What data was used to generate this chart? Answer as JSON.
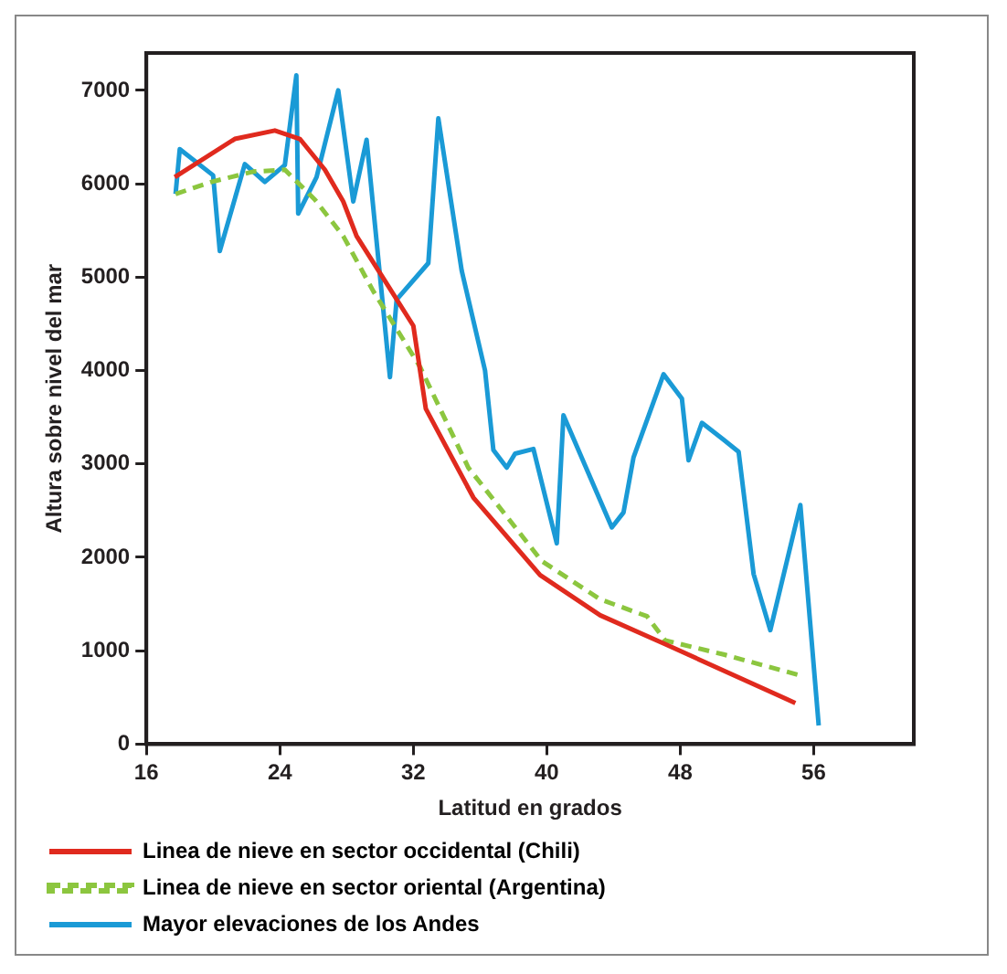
{
  "chart_data": {
    "type": "line",
    "xlabel": "Latitud en grados",
    "ylabel": "Altura sobre nivel del mar",
    "xlim": [
      16,
      62
    ],
    "xticks": [
      16,
      24,
      32,
      40,
      48,
      56
    ],
    "ylim": [
      0,
      7400
    ],
    "yticks": [
      0,
      1000,
      2000,
      3000,
      4000,
      5000,
      6000,
      7000
    ],
    "grid": false,
    "legend": "bottom",
    "marker": "none",
    "series": [
      {
        "name": "Linea de nieve en sector occidental (Chili)",
        "color": "#e02a1e",
        "line_style": "solid",
        "x": [
          17.7,
          21.3,
          23.7,
          25.2,
          26.7,
          27.8,
          28.6,
          30.3,
          32.0,
          32.75,
          35.6,
          39.6,
          43.2,
          47.1,
          54.9
        ],
        "values": [
          6070,
          6480,
          6570,
          6480,
          6150,
          5810,
          5440,
          4960,
          4480,
          3590,
          2640,
          1810,
          1380,
          1070,
          440
        ]
      },
      {
        "name": "Linea de nieve en sector oriental (Argentina)",
        "color": "#8cc63f",
        "line_style": "dashed",
        "x": [
          17.75,
          19.9,
          22.4,
          24.3,
          26.1,
          27.8,
          29.6,
          31.4,
          32.4,
          35.3,
          39.7,
          43.2,
          46.0,
          47.1,
          50.6,
          55.1
        ],
        "values": [
          5890,
          6020,
          6130,
          6150,
          5830,
          5440,
          4850,
          4330,
          4040,
          2960,
          1960,
          1550,
          1370,
          1110,
          960,
          740
        ]
      },
      {
        "name": "Mayor elevaciones de los Andes",
        "color": "#1a9ad6",
        "line_style": "solid",
        "x": [
          17.75,
          18.0,
          20.0,
          20.4,
          21.9,
          23.1,
          24.3,
          24.99,
          25.1,
          26.2,
          27.5,
          28.4,
          29.2,
          30.6,
          31.0,
          32.9,
          33.5,
          34.9,
          36.3,
          36.8,
          37.6,
          38.1,
          39.2,
          40.6,
          41.0,
          43.9,
          44.6,
          45.2,
          47.0,
          48.1,
          48.5,
          49.3,
          50.6,
          51.5,
          52.4,
          53.4,
          55.2,
          56.3
        ],
        "values": [
          5890,
          6370,
          6090,
          5280,
          6210,
          6020,
          6200,
          7160,
          5680,
          6070,
          7000,
          5810,
          6470,
          3930,
          4760,
          5150,
          6700,
          5070,
          4000,
          3150,
          2960,
          3110,
          3160,
          2150,
          3520,
          2320,
          2480,
          3070,
          3960,
          3700,
          3040,
          3440,
          3260,
          3130,
          1820,
          1220,
          2560,
          200
        ]
      }
    ]
  }
}
